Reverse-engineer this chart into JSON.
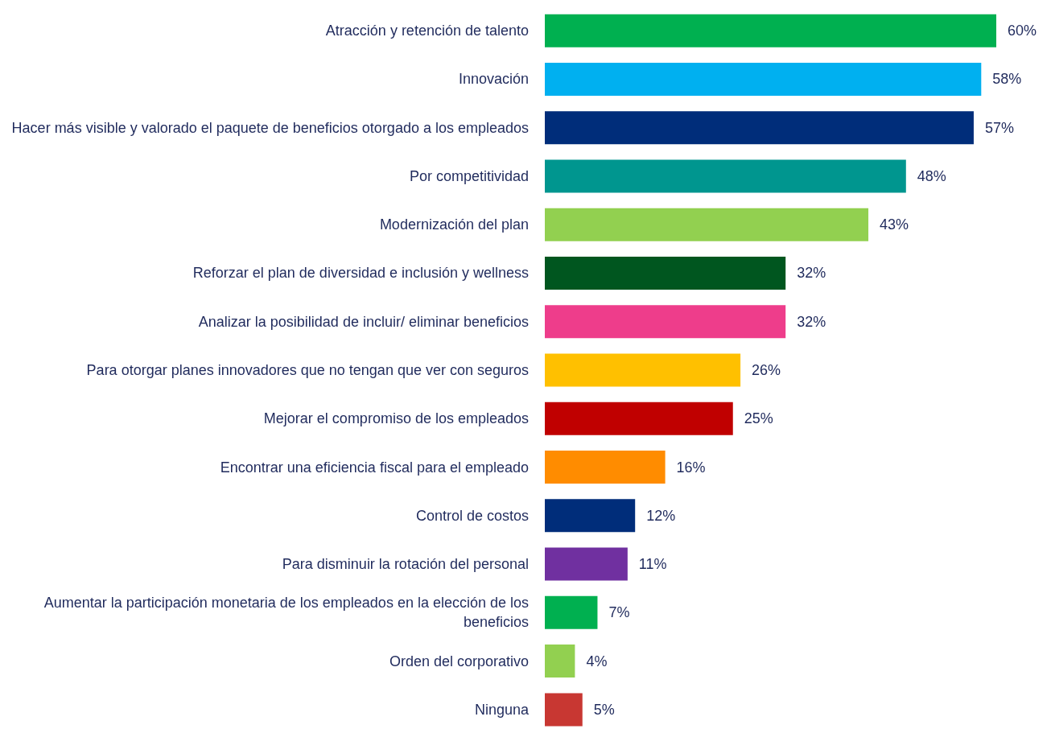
{
  "chart_data": {
    "type": "bar",
    "orientation": "horizontal",
    "categories": [
      "Atracción y retención de talento",
      "Innovación",
      "Hacer más visible y valorado el paquete de beneficios otorgado a los empleados",
      "Por competitividad",
      "Modernización del plan",
      "Reforzar el plan de diversidad e inclusión y wellness",
      "Analizar la posibilidad de incluir/ eliminar beneficios",
      "Para otorgar planes innovadores que no tengan que ver con seguros",
      "Mejorar el compromiso de los empleados",
      "Encontrar una eficiencia fiscal para el empleado",
      "Control de costos",
      "Para disminuir la rotación del personal",
      "Aumentar la participación monetaria de los empleados en la elección de los beneficios",
      "Orden del corporativo",
      "Ninguna"
    ],
    "values": [
      60,
      58,
      57,
      48,
      43,
      32,
      32,
      26,
      25,
      16,
      12,
      11,
      7,
      4,
      5
    ],
    "value_labels": [
      "60%",
      "58%",
      "57%",
      "48%",
      "43%",
      "32%",
      "32%",
      "26%",
      "25%",
      "16%",
      "12%",
      "11%",
      "7%",
      "4%",
      "5%"
    ],
    "colors": [
      "#00b050",
      "#00b0f0",
      "#002d7a",
      "#00968f",
      "#92d050",
      "#00561f",
      "#ee3d8b",
      "#ffc000",
      "#c00000",
      "#ff8c00",
      "#002d7a",
      "#7030a0",
      "#00b050",
      "#92d050",
      "#c83732"
    ],
    "grid": false,
    "legend": false
  }
}
